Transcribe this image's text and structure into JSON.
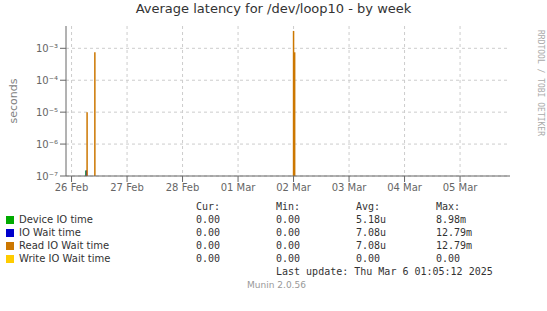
{
  "chart_data": {
    "type": "bar",
    "title": "Average latency for /dev/loop10 - by week",
    "y_label": "seconds",
    "log": "y",
    "grid": true,
    "xlim": [
      -0.1,
      7.9
    ],
    "xticks": [
      {
        "value": 0,
        "label": "26 Feb"
      },
      {
        "value": 1,
        "label": "27 Feb"
      },
      {
        "value": 2,
        "label": "28 Feb"
      },
      {
        "value": 3,
        "label": "01 Mar"
      },
      {
        "value": 4,
        "label": "02 Mar"
      },
      {
        "value": 5,
        "label": "03 Mar"
      },
      {
        "value": 6,
        "label": "04 Mar"
      },
      {
        "value": 7,
        "label": "05 Mar"
      }
    ],
    "ylim": [
      1e-07,
      0.005
    ],
    "yticks": [
      {
        "value": 1e-07,
        "label": "10⁻⁷"
      },
      {
        "value": 1e-06,
        "label": "10⁻⁶"
      },
      {
        "value": 1e-05,
        "label": "10⁻⁵"
      },
      {
        "value": 0.0001,
        "label": "10⁻⁴"
      },
      {
        "value": 0.001,
        "label": "10⁻³"
      }
    ],
    "series": [
      {
        "name": "Device IO time",
        "color": "#00aa00",
        "x": [
          0.26
        ],
        "values": [
          1.5e-07
        ]
      },
      {
        "name": "IO Wait time",
        "color": "#0000cc",
        "x": [
          0.27
        ],
        "values": [
          1.5e-07
        ]
      },
      {
        "name": "Read IO Wait time",
        "color": "#cc7700",
        "x": [
          0.28,
          0.42,
          4.0,
          4.02
        ],
        "values": [
          1e-05,
          0.00075,
          0.0035,
          0.00075
        ]
      },
      {
        "name": "Write IO Wait time",
        "color": "#ffcc00",
        "x": [],
        "values": []
      }
    ],
    "legend_table": {
      "headers": [
        "Cur:",
        "Min:",
        "Avg:",
        "Max:"
      ],
      "rows": [
        [
          "0.00",
          "0.00",
          "5.18u",
          "8.98m"
        ],
        [
          "0.00",
          "0.00",
          "7.08u",
          "12.79m"
        ],
        [
          "0.00",
          "0.00",
          "7.08u",
          "12.79m"
        ],
        [
          "0.00",
          "0.00",
          "0.00",
          "0.00"
        ]
      ]
    },
    "annotations": [
      "Last update: Thu Mar  6 01:05:12 2025",
      "Munin 2.0.56",
      "RRDTOOL / TOBI OETIKER"
    ]
  }
}
